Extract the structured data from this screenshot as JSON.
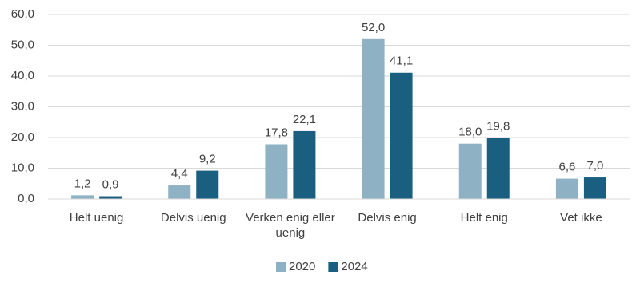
{
  "chart_data": {
    "type": "bar",
    "categories": [
      "Helt uenig",
      "Delvis uenig",
      "Verken enig eller uenig",
      "Delvis enig",
      "Helt enig",
      "Vet ikke"
    ],
    "series": [
      {
        "name": "2020",
        "color": "#8fb1c4",
        "values": [
          1.2,
          4.4,
          17.8,
          52.0,
          18.0,
          6.6
        ],
        "value_labels": [
          "1,2",
          "4,4",
          "17,8",
          "52,0",
          "18,0",
          "6,6"
        ]
      },
      {
        "name": "2024",
        "color": "#1a5f80",
        "values": [
          0.9,
          9.2,
          22.1,
          41.1,
          19.8,
          7.0
        ],
        "value_labels": [
          "0,9",
          "9,2",
          "22,1",
          "41,1",
          "19,8",
          "7,0"
        ]
      }
    ],
    "ylim": [
      0,
      60
    ],
    "yticks": [
      {
        "value": 0,
        "label": "0,0"
      },
      {
        "value": 10,
        "label": "10,0"
      },
      {
        "value": 20,
        "label": "20,0"
      },
      {
        "value": 30,
        "label": "30,0"
      },
      {
        "value": 40,
        "label": "40,0"
      },
      {
        "value": 50,
        "label": "50,0"
      },
      {
        "value": 60,
        "label": "60,0"
      }
    ],
    "grid": true,
    "legend": "bottom"
  }
}
